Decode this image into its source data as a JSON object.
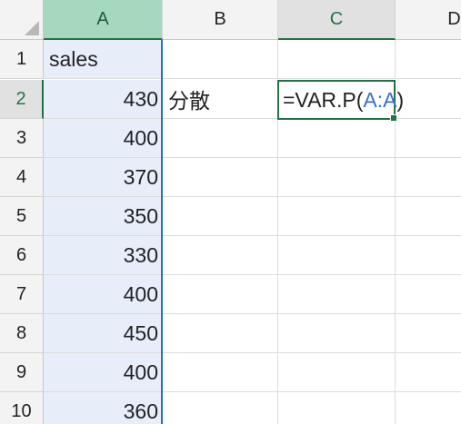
{
  "columns": [
    "A",
    "B",
    "C",
    "D"
  ],
  "rows": [
    "1",
    "2",
    "3",
    "4",
    "5",
    "6",
    "7",
    "8",
    "9",
    "10"
  ],
  "cells": {
    "A1": "sales",
    "A2": "430",
    "A3": "400",
    "A4": "370",
    "A5": "350",
    "A6": "330",
    "A7": "400",
    "A8": "450",
    "A9": "400",
    "A10": "360",
    "B2": "分散"
  },
  "active_cell": {
    "ref": "C2",
    "formula_prefix": "=VAR.P(",
    "formula_range": "A:A",
    "formula_suffix": ")"
  },
  "colors": {
    "accent_green": "#217346",
    "selected_column": "#e7eefa",
    "range_ref_blue": "#3a6fc8"
  }
}
